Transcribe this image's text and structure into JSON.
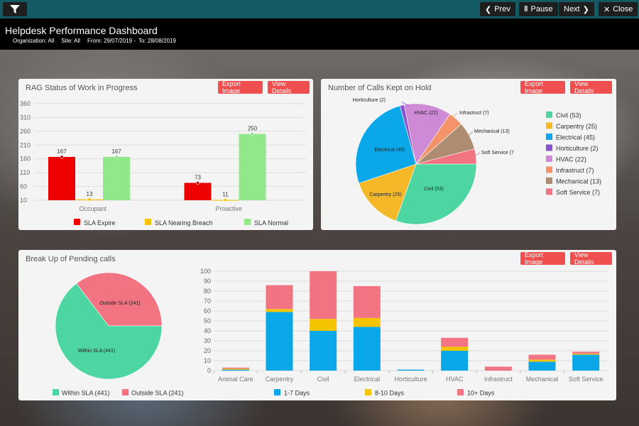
{
  "nav": {
    "prev": "Prev",
    "pause": "Pause",
    "next": "Next",
    "close": "Close"
  },
  "header": {
    "title": "Helpdesk Performance Dashboard",
    "organization": "Organization: All",
    "site": "Site: All",
    "from": "From: 29/07/2019 -",
    "to": "To: 28/08/2019"
  },
  "buttons": {
    "export": "Export Image",
    "details": "View Details"
  },
  "panels": {
    "rag_title": "RAG Status of Work in Progress",
    "hold_title": "Number of Calls Kept on Hold",
    "pending_title": "Break Up of Pending calls"
  },
  "chart_data": [
    {
      "type": "bar",
      "title": "RAG Status of Work in Progress",
      "categories": [
        "Occupant",
        "Proactive"
      ],
      "yticks": [
        10,
        60,
        110,
        160,
        210,
        260,
        310,
        360
      ],
      "ylim": [
        10,
        360
      ],
      "series": [
        {
          "name": "SLA Expire",
          "color": "#ee0000",
          "values": [
            167,
            73
          ]
        },
        {
          "name": "SLA Nearing Breach",
          "color": "#f5c400",
          "values": [
            13,
            11
          ]
        },
        {
          "name": "SLA Normal",
          "color": "#90e88a",
          "values": [
            167,
            250
          ]
        }
      ],
      "legend": "bottom"
    },
    {
      "type": "pie",
      "title": "Number of Calls Kept on Hold",
      "slices": [
        {
          "label": "Civil",
          "value": 53,
          "color": "#4dd6a1"
        },
        {
          "label": "Carpentry",
          "value": 25,
          "color": "#f5b829"
        },
        {
          "label": "Electrical",
          "value": 45,
          "color": "#0aa8e8"
        },
        {
          "label": "Horticulture",
          "value": 2,
          "color": "#8a54d0"
        },
        {
          "label": "HVAC",
          "value": 22,
          "color": "#cf8ad6"
        },
        {
          "label": "Infrastruct",
          "value": 7,
          "color": "#f4936a"
        },
        {
          "label": "Mechanical",
          "value": 13,
          "color": "#ae8c72"
        },
        {
          "label": "Soft Service",
          "value": 7,
          "color": "#f27382"
        }
      ],
      "legend": [
        "Civil (53)",
        "Carpentry (25)",
        "Electrical (45)",
        "Horticulture (2)",
        "HVAC (22)",
        "Infrastruct (7)",
        "Mechanical (13)",
        "Soft Service (7)"
      ],
      "labels": [
        "Civil (53)",
        "Carpentry (25)",
        "Electrical (45)",
        "Horticulture (2)",
        "HVAC (22)",
        "Infrastruct (7)",
        "Mechanical (13)",
        "Soft Service (7"
      ]
    },
    {
      "type": "pie",
      "slices": [
        {
          "label": "Within SLA",
          "value": 441,
          "color": "#4dd6a1"
        },
        {
          "label": "Outside SLA",
          "value": 241,
          "color": "#f27382"
        }
      ],
      "labels": [
        "Within SLA (441)",
        "Outside SLA (241)"
      ],
      "legend": [
        "Within SLA (441)",
        "Outside SLA (241)"
      ]
    },
    {
      "type": "bar",
      "stacked": true,
      "categories": [
        "Animal Care",
        "Carpentry",
        "Civil",
        "Electrical",
        "Horticulture",
        "HVAC",
        "Infrastruct",
        "Mechanical",
        "Soft Service"
      ],
      "yticks": [
        0,
        10,
        20,
        30,
        40,
        50,
        60,
        70,
        80,
        90,
        100
      ],
      "ylim": [
        0,
        100
      ],
      "series": [
        {
          "name": "1-7 Days",
          "color": "#0aa8e8",
          "values": [
            1,
            59,
            40,
            44,
            1,
            20,
            0,
            9,
            16
          ]
        },
        {
          "name": "8-10 Days",
          "color": "#f5c400",
          "values": [
            1,
            3,
            12,
            9,
            0,
            4,
            0,
            2,
            1
          ]
        },
        {
          "name": "10+ Days",
          "color": "#f27382",
          "values": [
            1,
            24,
            48,
            32,
            0,
            9,
            4,
            5,
            2
          ]
        }
      ],
      "legend": "bottom"
    }
  ]
}
